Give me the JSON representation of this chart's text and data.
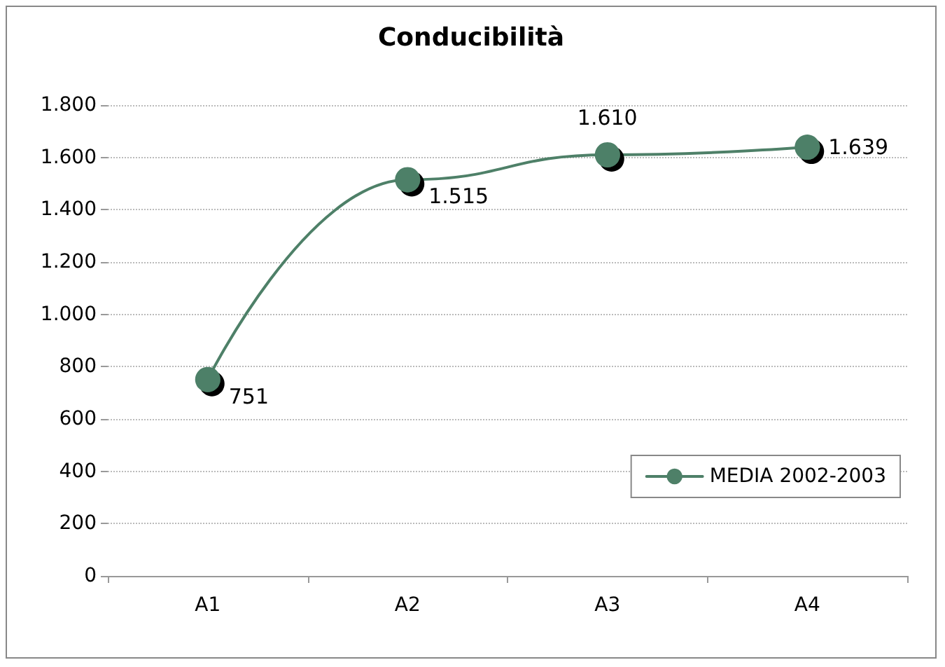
{
  "chart_data": {
    "type": "line",
    "title": "Conducibilità",
    "categories": [
      "A1",
      "A2",
      "A3",
      "A4"
    ],
    "series": [
      {
        "name": "MEDIA 2002-2003",
        "color": "#4e8068",
        "values": [
          751,
          1515,
          1610,
          1639
        ],
        "value_labels": [
          "751",
          "1.515",
          "1.610",
          "1.639"
        ]
      }
    ],
    "ylim": [
      0,
      1800
    ],
    "yticks": [
      {
        "value": 0,
        "label": "0"
      },
      {
        "value": 200,
        "label": "200"
      },
      {
        "value": 400,
        "label": "400"
      },
      {
        "value": 600,
        "label": "600"
      },
      {
        "value": 800,
        "label": "800"
      },
      {
        "value": 1000,
        "label": "1.000"
      },
      {
        "value": 1200,
        "label": "1.200"
      },
      {
        "value": 1400,
        "label": "1.400"
      },
      {
        "value": 1600,
        "label": "1.600"
      },
      {
        "value": 1800,
        "label": "1.800"
      }
    ],
    "grid": "y",
    "legend": "bottom right",
    "marker": "circle",
    "line_style": "solid"
  }
}
